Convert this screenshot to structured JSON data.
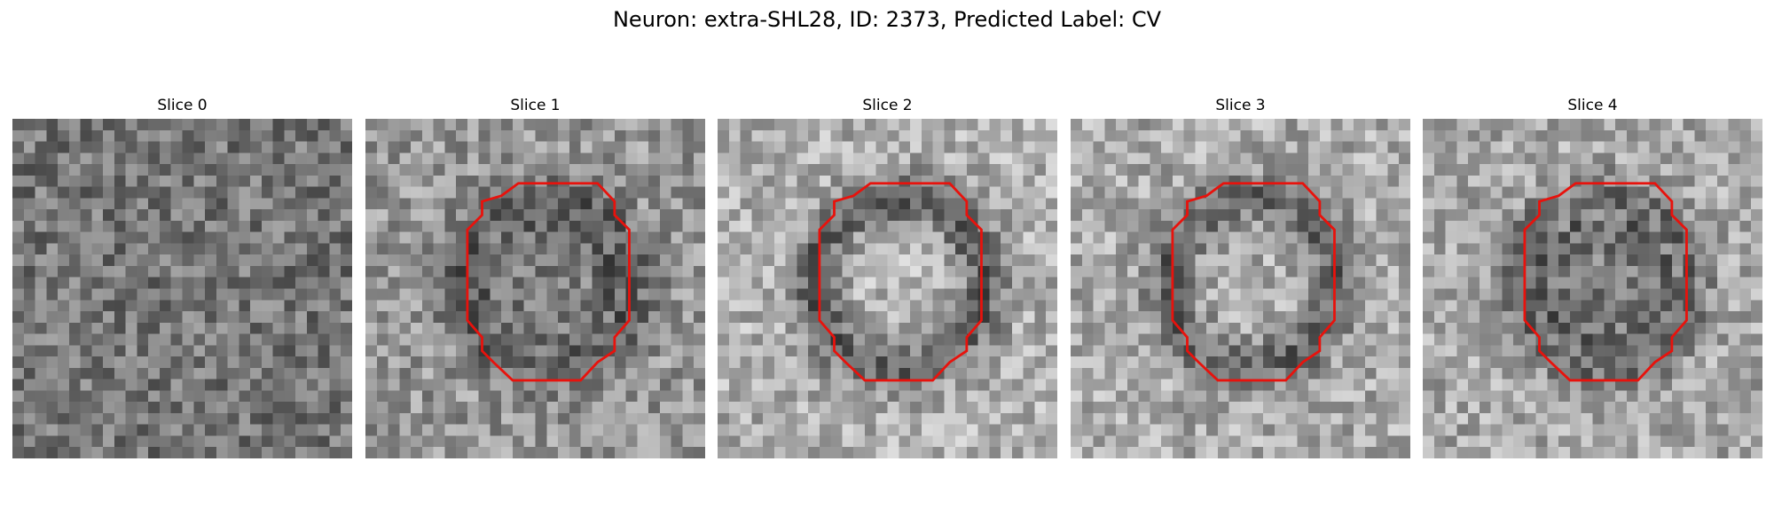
{
  "figure": {
    "title": "Neuron: extra-SHL28, ID: 2373, Predicted Label: CV"
  },
  "panels": [
    {
      "title": "Slice 0",
      "has_contour": false,
      "seed": 11,
      "base": 118,
      "ring": 0,
      "center": 0
    },
    {
      "title": "Slice 1",
      "has_contour": true,
      "seed": 23,
      "base": 150,
      "ring": -55,
      "center": -25
    },
    {
      "title": "Slice 2",
      "has_contour": true,
      "seed": 37,
      "base": 175,
      "ring": -80,
      "center": 5
    },
    {
      "title": "Slice 3",
      "has_contour": true,
      "seed": 41,
      "base": 170,
      "ring": -70,
      "center": 0
    },
    {
      "title": "Slice 4",
      "has_contour": true,
      "seed": 53,
      "base": 168,
      "ring": -60,
      "center": -45
    }
  ],
  "colors": {
    "contour": "#e8120c",
    "background": "#ffffff"
  },
  "image_type": "grayscale microscopy patch"
}
